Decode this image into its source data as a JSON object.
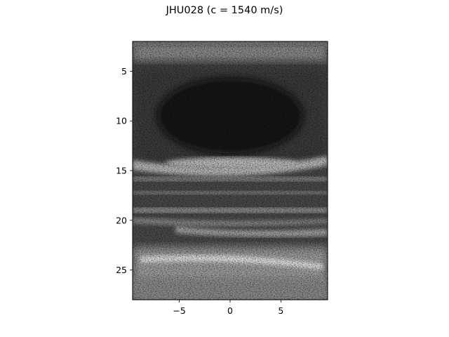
{
  "figure": {
    "title": "JHU028 (c = 1540 m/s)"
  },
  "axes": {
    "x_ticks": [
      {
        "value": -5,
        "label": "−5"
      },
      {
        "value": 0,
        "label": "0"
      },
      {
        "value": 5,
        "label": "5"
      }
    ],
    "y_ticks": [
      {
        "value": 5,
        "label": "5"
      },
      {
        "value": 10,
        "label": "10"
      },
      {
        "value": 15,
        "label": "15"
      },
      {
        "value": 20,
        "label": "20"
      },
      {
        "value": 25,
        "label": "25"
      }
    ],
    "xlim": [
      -9.6,
      9.6
    ],
    "ylim": [
      2.0,
      28.0
    ],
    "y_inverted": true
  },
  "image": {
    "description": "grayscale B-mode ultrasound image",
    "colormap": "gray"
  }
}
